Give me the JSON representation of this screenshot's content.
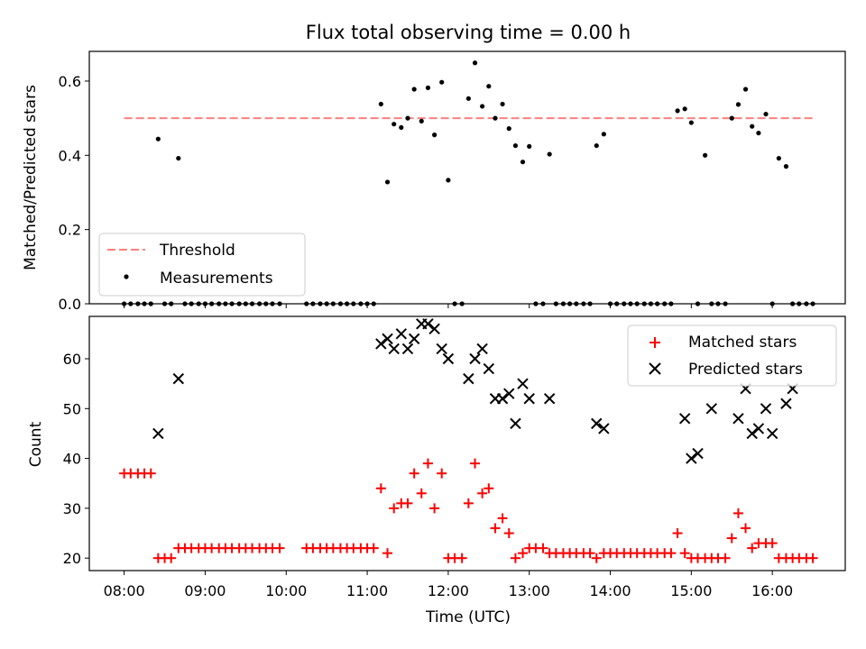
{
  "title": "Flux total observing time = 0.00 h",
  "chart_data": [
    {
      "type": "scatter",
      "panel": "top",
      "ylabel": "Matched/Predicted stars",
      "ylim": [
        0,
        0.68
      ],
      "yticks": [
        "0.0",
        "0.2",
        "0.4",
        "0.6"
      ],
      "ytick_values": [
        0,
        0.2,
        0.4,
        0.6
      ],
      "xlim": [
        7.57,
        16.9
      ],
      "legend_position": "lower-left",
      "threshold": {
        "name": "Threshold",
        "value": 0.5,
        "x_start": 8.0,
        "x_end": 16.5,
        "color": "#ff7f7f"
      },
      "measurements": {
        "name": "Measurements",
        "color": "#000000",
        "x": [
          8.0,
          8.08,
          8.17,
          8.25,
          8.33,
          8.42,
          8.5,
          8.58,
          8.67,
          8.75,
          8.83,
          8.92,
          9.0,
          9.08,
          9.17,
          9.25,
          9.33,
          9.42,
          9.5,
          9.58,
          9.67,
          9.75,
          9.83,
          9.92,
          10.25,
          10.33,
          10.42,
          10.5,
          10.58,
          10.67,
          10.75,
          10.83,
          10.92,
          11.0,
          11.08,
          11.17,
          11.25,
          11.33,
          11.42,
          11.5,
          11.58,
          11.67,
          11.75,
          11.83,
          11.92,
          12.0,
          12.08,
          12.17,
          12.25,
          12.33,
          12.42,
          12.5,
          12.58,
          12.67,
          12.75,
          12.83,
          12.92,
          13.0,
          13.08,
          13.17,
          13.25,
          13.33,
          13.42,
          13.5,
          13.58,
          13.67,
          13.75,
          13.83,
          13.92,
          14.0,
          14.08,
          14.17,
          14.25,
          14.33,
          14.42,
          14.5,
          14.58,
          14.67,
          14.75,
          14.83,
          14.92,
          15.0,
          15.08,
          15.17,
          15.25,
          15.33,
          15.42,
          15.5,
          15.58,
          15.67,
          15.75,
          15.83,
          15.92,
          16.0,
          16.08,
          16.17,
          16.25,
          16.33,
          16.42,
          16.5
        ],
        "y": [
          0,
          0,
          0,
          0,
          0,
          0.444,
          0,
          0,
          0.392,
          0,
          0,
          0,
          0,
          0,
          0,
          0,
          0,
          0,
          0,
          0,
          0,
          0,
          0,
          0,
          0,
          0,
          0,
          0,
          0,
          0,
          0,
          0,
          0,
          0,
          0,
          0.538,
          0.328,
          0.484,
          0.475,
          0.5,
          0.578,
          0.492,
          0.582,
          0.455,
          0.597,
          0.333,
          0,
          0,
          0.553,
          0.649,
          0.532,
          0.586,
          0.5,
          0.538,
          0.472,
          0.426,
          0.382,
          0.424,
          0,
          0,
          0.403,
          0,
          0,
          0,
          0,
          0,
          0,
          0.426,
          0.457,
          0,
          0,
          0,
          0,
          0,
          0,
          0,
          0,
          0,
          0,
          0.52,
          0.525,
          0.488,
          0,
          0.4,
          0,
          0,
          0,
          0.5,
          0.537,
          0.578,
          0.478,
          0.46,
          0.511,
          0,
          0.392,
          0.37,
          0,
          0,
          0,
          0
        ]
      }
    },
    {
      "type": "scatter",
      "panel": "bottom",
      "xlabel": "Time (UTC)",
      "ylabel": "Count",
      "ylim": [
        17.5,
        68.5
      ],
      "yticks": [
        "20",
        "30",
        "40",
        "50",
        "60"
      ],
      "ytick_values": [
        20,
        30,
        40,
        50,
        60
      ],
      "xlim": [
        7.57,
        16.9
      ],
      "xticks": [
        "08:00",
        "09:00",
        "10:00",
        "11:00",
        "12:00",
        "13:00",
        "14:00",
        "15:00",
        "16:00"
      ],
      "xtick_values": [
        8,
        9,
        10,
        11,
        12,
        13,
        14,
        15,
        16
      ],
      "legend_position": "upper-right",
      "series": [
        {
          "name": "Matched stars",
          "marker": "plus",
          "color": "#ff0000",
          "x": [
            8.0,
            8.08,
            8.17,
            8.25,
            8.33,
            8.42,
            8.5,
            8.58,
            8.67,
            8.75,
            8.83,
            8.92,
            9.0,
            9.08,
            9.17,
            9.25,
            9.33,
            9.42,
            9.5,
            9.58,
            9.67,
            9.75,
            9.83,
            9.92,
            10.25,
            10.33,
            10.42,
            10.5,
            10.58,
            10.67,
            10.75,
            10.83,
            10.92,
            11.0,
            11.08,
            11.17,
            11.25,
            11.33,
            11.42,
            11.5,
            11.58,
            11.67,
            11.75,
            11.83,
            11.92,
            12.0,
            12.08,
            12.17,
            12.25,
            12.33,
            12.42,
            12.5,
            12.58,
            12.67,
            12.75,
            12.83,
            12.92,
            13.0,
            13.08,
            13.17,
            13.25,
            13.33,
            13.42,
            13.5,
            13.58,
            13.67,
            13.75,
            13.83,
            13.92,
            14.0,
            14.08,
            14.17,
            14.25,
            14.33,
            14.42,
            14.5,
            14.58,
            14.67,
            14.75,
            14.83,
            14.92,
            15.0,
            15.08,
            15.17,
            15.25,
            15.33,
            15.42,
            15.5,
            15.58,
            15.67,
            15.75,
            15.83,
            15.92,
            16.0,
            16.08,
            16.17,
            16.25,
            16.33,
            16.42,
            16.5
          ],
          "y": [
            37,
            37,
            37,
            37,
            37,
            20,
            20,
            20,
            22,
            22,
            22,
            22,
            22,
            22,
            22,
            22,
            22,
            22,
            22,
            22,
            22,
            22,
            22,
            22,
            22,
            22,
            22,
            22,
            22,
            22,
            22,
            22,
            22,
            22,
            22,
            34,
            21,
            30,
            31,
            31,
            37,
            33,
            39,
            30,
            37,
            20,
            20,
            20,
            31,
            39,
            33,
            34,
            26,
            28,
            25,
            20,
            21,
            22,
            22,
            22,
            21,
            21,
            21,
            21,
            21,
            21,
            21,
            20,
            21,
            21,
            21,
            21,
            21,
            21,
            21,
            21,
            21,
            21,
            21,
            25,
            21,
            20,
            20,
            20,
            20,
            20,
            20,
            24,
            29,
            26,
            22,
            23,
            23,
            23,
            20,
            20,
            20,
            20,
            20,
            20
          ]
        },
        {
          "name": "Predicted stars",
          "marker": "x",
          "color": "#000000",
          "x": [
            8.42,
            8.67,
            11.17,
            11.25,
            11.33,
            11.42,
            11.5,
            11.58,
            11.67,
            11.75,
            11.83,
            11.92,
            12.0,
            12.25,
            12.33,
            12.42,
            12.5,
            12.58,
            12.67,
            12.75,
            12.83,
            12.92,
            13.0,
            13.25,
            13.83,
            13.92,
            14.92,
            15.0,
            15.08,
            15.25,
            15.58,
            15.67,
            15.75,
            15.83,
            15.92,
            16.0,
            16.17,
            16.25
          ],
          "y": [
            45,
            56,
            63,
            64,
            62,
            65,
            62,
            64,
            67,
            67,
            66,
            62,
            60,
            56,
            60,
            62,
            58,
            52,
            52,
            53,
            47,
            55,
            52,
            52,
            47,
            46,
            48,
            40,
            41,
            50,
            48,
            54,
            45,
            46,
            50,
            45,
            51,
            54
          ]
        }
      ]
    }
  ]
}
